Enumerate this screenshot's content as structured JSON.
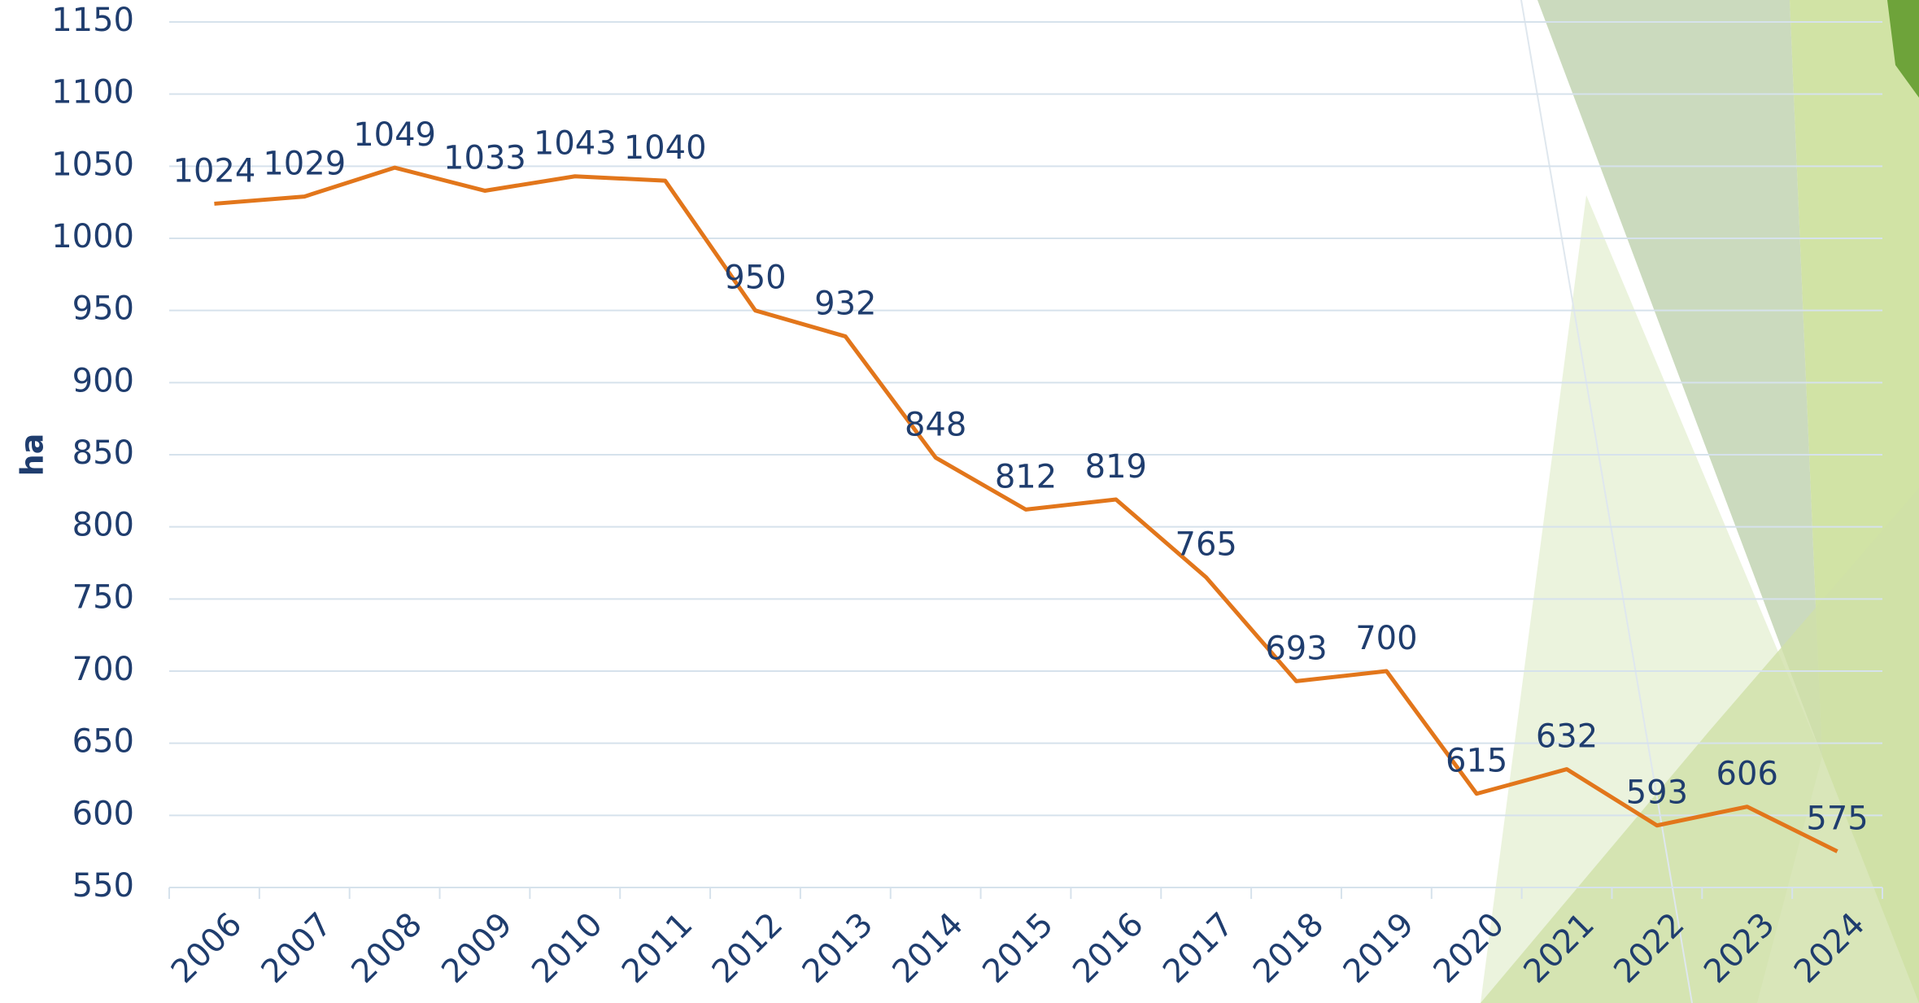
{
  "chart_data": {
    "type": "line",
    "y_label": "ha",
    "categories": [
      "2006",
      "2007",
      "2008",
      "2009",
      "2010",
      "2011",
      "2012",
      "2013",
      "2014",
      "2015",
      "2016",
      "2017",
      "2018",
      "2019",
      "2020",
      "2021",
      "2022",
      "2023",
      "2024"
    ],
    "values": [
      1024,
      1029,
      1049,
      1033,
      1043,
      1040,
      950,
      932,
      848,
      812,
      819,
      765,
      693,
      700,
      615,
      632,
      593,
      606,
      575
    ],
    "color": "#e2761b",
    "ylim": [
      550,
      1150
    ],
    "yticks": [
      550,
      600,
      650,
      700,
      750,
      800,
      850,
      900,
      950,
      1000,
      1050,
      1100,
      1150
    ],
    "grid": true
  }
}
